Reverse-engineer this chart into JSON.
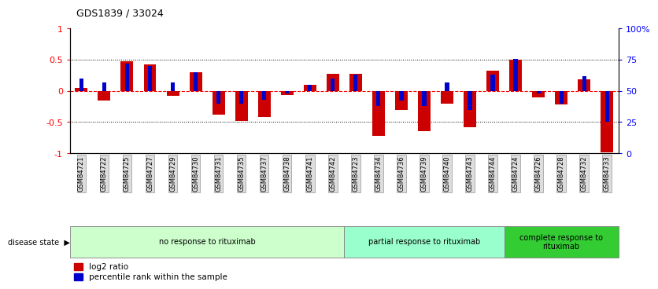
{
  "title": "GDS1839 / 33024",
  "samples": [
    "GSM84721",
    "GSM84722",
    "GSM84725",
    "GSM84727",
    "GSM84729",
    "GSM84730",
    "GSM84731",
    "GSM84735",
    "GSM84737",
    "GSM84738",
    "GSM84741",
    "GSM84742",
    "GSM84723",
    "GSM84734",
    "GSM84736",
    "GSM84739",
    "GSM84740",
    "GSM84743",
    "GSM84744",
    "GSM84724",
    "GSM84726",
    "GSM84728",
    "GSM84732",
    "GSM84733"
  ],
  "log2_ratio": [
    0.05,
    -0.15,
    0.48,
    0.43,
    -0.08,
    0.3,
    -0.38,
    -0.48,
    -0.42,
    -0.07,
    0.1,
    0.28,
    0.28,
    -0.72,
    -0.3,
    -0.65,
    -0.2,
    -0.58,
    0.32,
    0.5,
    -0.1,
    -0.22,
    0.18,
    -0.98
  ],
  "percentile_rank": [
    60,
    57,
    72,
    70,
    57,
    65,
    40,
    40,
    43,
    48,
    55,
    60,
    63,
    38,
    42,
    38,
    57,
    35,
    63,
    76,
    48,
    40,
    62,
    25
  ],
  "groups": [
    {
      "label": "no response to rituximab",
      "start": 0,
      "end": 12,
      "color": "#ccffcc"
    },
    {
      "label": "partial response to rituximab",
      "start": 12,
      "end": 19,
      "color": "#99ffcc"
    },
    {
      "label": "complete response to\nrituximab",
      "start": 19,
      "end": 24,
      "color": "#33cc33"
    }
  ],
  "bar_color_red": "#cc0000",
  "bar_color_blue": "#0000cc",
  "ylim_left": [
    -1,
    1
  ],
  "ylim_right": [
    0,
    100
  ],
  "yticks_left": [
    -1,
    -0.5,
    0,
    0.5,
    1
  ],
  "yticks_right": [
    0,
    25,
    50,
    75,
    100
  ],
  "yticklabels_right": [
    "0",
    "25",
    "50",
    "75",
    "100%"
  ],
  "legend_red": "log2 ratio",
  "legend_blue": "percentile rank within the sample",
  "disease_state_label": "disease state",
  "background_color": "#ffffff",
  "tick_bg_color": "#dddddd"
}
